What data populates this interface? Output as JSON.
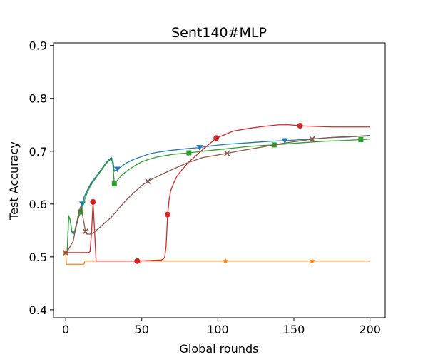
{
  "chart_data": {
    "type": "line",
    "title": "Sent140#MLP",
    "xlabel": "Global rounds",
    "ylabel": "Test Accuracy",
    "xlim": [
      -8,
      210
    ],
    "ylim": [
      0.385,
      0.905
    ],
    "xticks": [
      0,
      50,
      100,
      150,
      200
    ],
    "xtick_labels": [
      "0",
      "50",
      "100",
      "150",
      "200"
    ],
    "yticks": [
      0.4,
      0.5,
      0.6,
      0.7,
      0.8,
      0.9
    ],
    "ytick_labels": [
      "0.4",
      "0.5",
      "0.6",
      "0.7",
      "0.8",
      "0.9"
    ],
    "grid": false,
    "legend": "none",
    "series": [
      {
        "color": "#1f77b4",
        "marker": "triangle-down",
        "points": [
          [
            0,
            0.508
          ],
          [
            1,
            0.508
          ],
          [
            2,
            0.576
          ],
          [
            3,
            0.57
          ],
          [
            4,
            0.548
          ],
          [
            5,
            0.543
          ],
          [
            6,
            0.548
          ],
          [
            7,
            0.558
          ],
          [
            8,
            0.57
          ],
          [
            9,
            0.58
          ],
          [
            10,
            0.59
          ],
          [
            11,
            0.6
          ],
          [
            12,
            0.612
          ],
          [
            14,
            0.625
          ],
          [
            16,
            0.636
          ],
          [
            18,
            0.645
          ],
          [
            20,
            0.652
          ],
          [
            22,
            0.66
          ],
          [
            24,
            0.668
          ],
          [
            26,
            0.676
          ],
          [
            28,
            0.683
          ],
          [
            30,
            0.688
          ],
          [
            31,
            0.684
          ],
          [
            32,
            0.662
          ],
          [
            34,
            0.666
          ],
          [
            37,
            0.672
          ],
          [
            40,
            0.678
          ],
          [
            45,
            0.685
          ],
          [
            50,
            0.69
          ],
          [
            55,
            0.695
          ],
          [
            60,
            0.698
          ],
          [
            70,
            0.702
          ],
          [
            80,
            0.705
          ],
          [
            88,
            0.707
          ],
          [
            95,
            0.71
          ],
          [
            105,
            0.713
          ],
          [
            115,
            0.715
          ],
          [
            125,
            0.717
          ],
          [
            135,
            0.719
          ],
          [
            144,
            0.72
          ],
          [
            155,
            0.722
          ],
          [
            165,
            0.724
          ],
          [
            175,
            0.726
          ],
          [
            185,
            0.727
          ],
          [
            195,
            0.729
          ],
          [
            200,
            0.73
          ]
        ],
        "marker_x": [
          11,
          34,
          88,
          144
        ]
      },
      {
        "color": "#ff7f0e",
        "marker": "star",
        "points": [
          [
            0,
            0.508
          ],
          [
            0.5,
            0.486
          ],
          [
            5,
            0.486
          ],
          [
            10,
            0.486
          ],
          [
            12,
            0.486
          ],
          [
            12.5,
            0.492
          ],
          [
            20,
            0.492
          ],
          [
            40,
            0.492
          ],
          [
            60,
            0.492
          ],
          [
            80,
            0.492
          ],
          [
            100,
            0.492
          ],
          [
            120,
            0.492
          ],
          [
            140,
            0.492
          ],
          [
            160,
            0.492
          ],
          [
            180,
            0.492
          ],
          [
            200,
            0.492
          ]
        ],
        "marker_x": [
          0,
          48,
          105,
          162
        ]
      },
      {
        "color": "#2ca02c",
        "marker": "square",
        "points": [
          [
            0,
            0.508
          ],
          [
            1,
            0.508
          ],
          [
            2,
            0.578
          ],
          [
            3,
            0.57
          ],
          [
            4,
            0.55
          ],
          [
            5,
            0.545
          ],
          [
            6,
            0.55
          ],
          [
            7,
            0.562
          ],
          [
            8,
            0.572
          ],
          [
            9,
            0.578
          ],
          [
            10,
            0.585
          ],
          [
            11,
            0.592
          ],
          [
            12,
            0.605
          ],
          [
            14,
            0.62
          ],
          [
            16,
            0.633
          ],
          [
            18,
            0.642
          ],
          [
            20,
            0.65
          ],
          [
            22,
            0.658
          ],
          [
            24,
            0.666
          ],
          [
            26,
            0.674
          ],
          [
            28,
            0.681
          ],
          [
            30,
            0.686
          ],
          [
            31,
            0.676
          ],
          [
            32,
            0.638
          ],
          [
            34,
            0.645
          ],
          [
            37,
            0.655
          ],
          [
            40,
            0.662
          ],
          [
            45,
            0.672
          ],
          [
            50,
            0.68
          ],
          [
            55,
            0.685
          ],
          [
            60,
            0.689
          ],
          [
            70,
            0.694
          ],
          [
            81,
            0.697
          ],
          [
            90,
            0.7
          ],
          [
            100,
            0.703
          ],
          [
            110,
            0.706
          ],
          [
            120,
            0.709
          ],
          [
            130,
            0.711
          ],
          [
            137,
            0.712
          ],
          [
            150,
            0.715
          ],
          [
            160,
            0.717
          ],
          [
            170,
            0.719
          ],
          [
            180,
            0.72
          ],
          [
            194,
            0.722
          ],
          [
            200,
            0.723
          ]
        ],
        "marker_x": [
          10,
          32,
          81,
          137,
          194
        ]
      },
      {
        "color": "#d62728",
        "marker": "circle",
        "points": [
          [
            0,
            0.508
          ],
          [
            5,
            0.508
          ],
          [
            10,
            0.508
          ],
          [
            15,
            0.508
          ],
          [
            16,
            0.51
          ],
          [
            17,
            0.545
          ],
          [
            18,
            0.604
          ],
          [
            19,
            0.55
          ],
          [
            20,
            0.492
          ],
          [
            30,
            0.492
          ],
          [
            47,
            0.492
          ],
          [
            55,
            0.493
          ],
          [
            63,
            0.494
          ],
          [
            65,
            0.498
          ],
          [
            66,
            0.52
          ],
          [
            67,
            0.58
          ],
          [
            68,
            0.608
          ],
          [
            69,
            0.625
          ],
          [
            71,
            0.64
          ],
          [
            73,
            0.652
          ],
          [
            75,
            0.66
          ],
          [
            78,
            0.67
          ],
          [
            81,
            0.68
          ],
          [
            85,
            0.69
          ],
          [
            90,
            0.703
          ],
          [
            95,
            0.715
          ],
          [
            99,
            0.725
          ],
          [
            105,
            0.732
          ],
          [
            110,
            0.738
          ],
          [
            120,
            0.743
          ],
          [
            130,
            0.747
          ],
          [
            140,
            0.75
          ],
          [
            147,
            0.75
          ],
          [
            155,
            0.748
          ],
          [
            165,
            0.747
          ],
          [
            175,
            0.746
          ],
          [
            185,
            0.746
          ],
          [
            200,
            0.746
          ]
        ],
        "marker_x": [
          18,
          47,
          67,
          99,
          154
        ]
      },
      {
        "color": "#8c564b",
        "marker": "x",
        "points": [
          [
            0,
            0.508
          ],
          [
            1,
            0.508
          ],
          [
            2,
            0.515
          ],
          [
            3,
            0.52
          ],
          [
            4,
            0.525
          ],
          [
            5,
            0.53
          ],
          [
            6,
            0.545
          ],
          [
            7,
            0.56
          ],
          [
            8,
            0.575
          ],
          [
            9,
            0.588
          ],
          [
            10,
            0.596
          ],
          [
            11,
            0.58
          ],
          [
            12,
            0.565
          ],
          [
            13,
            0.548
          ],
          [
            14,
            0.543
          ],
          [
            16,
            0.543
          ],
          [
            18,
            0.545
          ],
          [
            20,
            0.55
          ],
          [
            23,
            0.557
          ],
          [
            26,
            0.565
          ],
          [
            30,
            0.575
          ],
          [
            35,
            0.592
          ],
          [
            40,
            0.608
          ],
          [
            45,
            0.622
          ],
          [
            50,
            0.635
          ],
          [
            54,
            0.643
          ],
          [
            60,
            0.652
          ],
          [
            66,
            0.66
          ],
          [
            72,
            0.668
          ],
          [
            80,
            0.678
          ],
          [
            90,
            0.688
          ],
          [
            100,
            0.693
          ],
          [
            106,
            0.696
          ],
          [
            115,
            0.701
          ],
          [
            125,
            0.706
          ],
          [
            135,
            0.711
          ],
          [
            145,
            0.716
          ],
          [
            155,
            0.72
          ],
          [
            162,
            0.723
          ],
          [
            170,
            0.725
          ],
          [
            180,
            0.727
          ],
          [
            190,
            0.728
          ],
          [
            200,
            0.729
          ]
        ],
        "marker_x": [
          0,
          13,
          54,
          106,
          162
        ]
      }
    ]
  }
}
